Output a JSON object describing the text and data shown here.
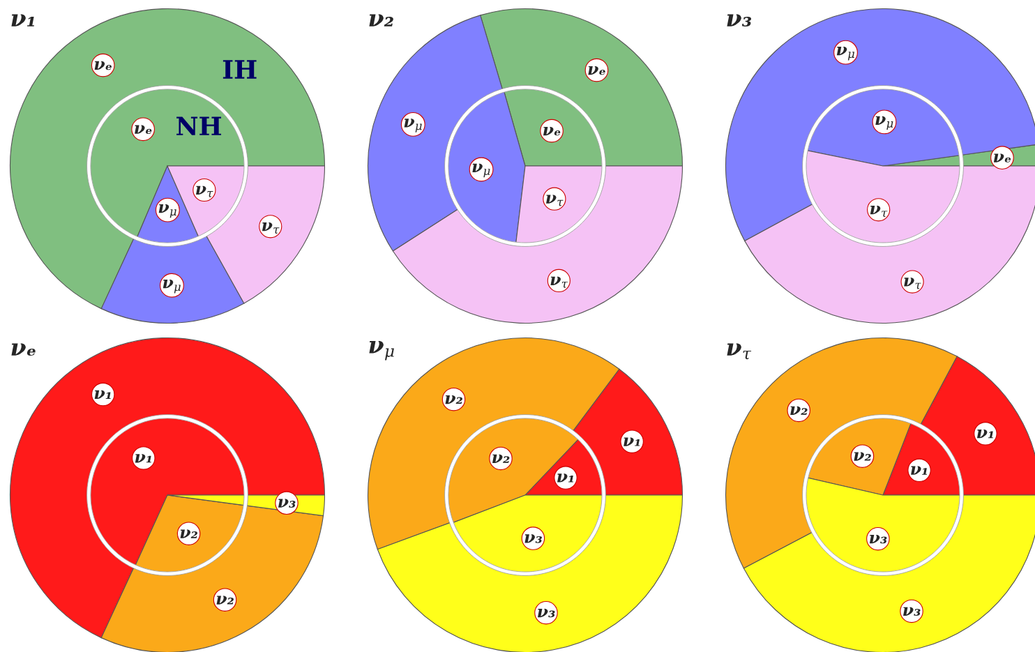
{
  "chart_data": [
    {
      "type": "pie",
      "title": "ν₁",
      "categories": [
        "νₑ",
        "ν$_{μ}$",
        "ν$_{τ}$"
      ],
      "colors": [
        "#80bf80",
        "#8080ff",
        "#f5c2f5"
      ],
      "series": [
        {
          "name": "NH",
          "values": [
            68.6,
            13.0,
            18.4
          ]
        },
        {
          "name": "IH",
          "values": [
            68.1,
            15.0,
            16.9
          ]
        }
      ]
    },
    {
      "type": "pie",
      "title": "ν₂",
      "categories": [
        "νₑ",
        "ν$_{μ}$",
        "ν$_{τ}$"
      ],
      "colors": [
        "#80bf80",
        "#8080ff",
        "#f5c2f5"
      ],
      "series": [
        {
          "values": [
            29.4,
            43.7,
            26.9
          ]
        },
        {
          "values": [
            29.6,
            29.5,
            40.9
          ]
        }
      ]
    },
    {
      "type": "pie",
      "title": "ν₃",
      "categories": [
        "νₑ",
        "ν$_{μ}$",
        "ν$_{τ}$"
      ],
      "colors": [
        "#80bf80",
        "#8080ff",
        "#f5c2f5"
      ],
      "series": [
        {
          "values": [
            2.2,
            44.6,
            53.2
          ]
        },
        {
          "values": [
            2.2,
            55.7,
            42.1
          ]
        }
      ]
    },
    {
      "type": "pie",
      "title": "νₑ",
      "categories": [
        "ν₁",
        "ν₂",
        "ν₃"
      ],
      "colors": [
        "#ff1a1a",
        "#fba919",
        "#ffff1a"
      ],
      "series": [
        {
          "values": [
            68.2,
            29.7,
            2.1
          ]
        },
        {
          "values": [
            68.1,
            29.8,
            2.1
          ]
        }
      ]
    },
    {
      "type": "pie",
      "title": "ν$_{μ}$",
      "categories": [
        "ν₁",
        "ν₂",
        "ν₃"
      ],
      "colors": [
        "#ff1a1a",
        "#fba919",
        "#ffff1a"
      ],
      "series": [
        {
          "values": [
            12.9,
            42.9,
            44.2
          ]
        },
        {
          "values": [
            14.8,
            40.8,
            44.4
          ]
        }
      ]
    },
    {
      "type": "pie",
      "title": "ν$_{τ}$",
      "categories": [
        "ν₁",
        "ν₂",
        "ν₃"
      ],
      "colors": [
        "#ff1a1a",
        "#fba919",
        "#ffff1a"
      ],
      "series": [
        {
          "values": [
            19.1,
            27.3,
            53.6
          ]
        },
        {
          "values": [
            17.2,
            40.5,
            42.3
          ]
        }
      ]
    }
  ]
}
